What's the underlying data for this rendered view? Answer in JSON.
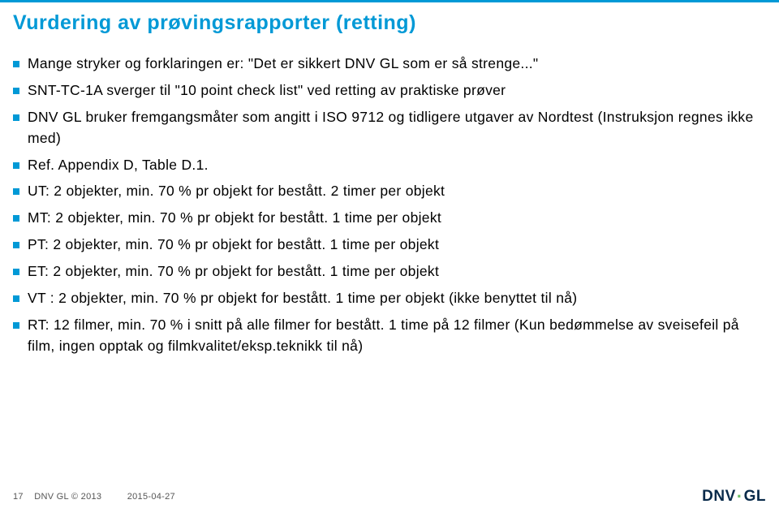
{
  "colors": {
    "accent": "#0099d6",
    "text": "#000000",
    "footer_text": "#555555",
    "logo_text": "#082a4a",
    "logo_dot": "#6fc067",
    "background": "#ffffff"
  },
  "typography": {
    "family": "Verdana, Geneva, sans-serif",
    "title_fontsize": 25,
    "body_fontsize": 17.5,
    "footer_fontsize": 11,
    "logo_fontsize": 19
  },
  "title": "Vurdering av prøvingsrapporter (retting)",
  "bullets": [
    "Mange stryker og forklaringen er: \"Det er sikkert DNV GL som er så strenge...\"",
    "SNT-TC-1A sverger til \"10 point check list\" ved retting av praktiske prøver",
    "DNV GL bruker fremgangsmåter som angitt i ISO 9712 og tidligere utgaver av Nordtest (Instruksjon regnes ikke med)",
    "Ref. Appendix D, Table D.1.",
    "UT: 2 objekter, min. 70 % pr objekt for bestått. 2 timer per objekt",
    "MT: 2 objekter, min. 70 % pr objekt for bestått. 1 time per objekt",
    "PT: 2 objekter, min. 70 % pr objekt for bestått. 1 time per objekt",
    "ET: 2 objekter, min. 70 % pr objekt for bestått. 1 time per objekt",
    "VT : 2 objekter, min. 70 % pr objekt for bestått. 1 time per objekt (ikke benyttet til nå)",
    "RT: 12 filmer, min. 70 % i snitt på alle filmer for bestått. 1 time på 12 filmer (Kun bedømmelse av sveisefeil på film, ingen opptak og filmkvalitet/eksp.teknikk til nå)"
  ],
  "footer": {
    "page": "17",
    "company": "DNV GL © 2013",
    "date": "2015-04-27"
  },
  "logo": {
    "left": "DNV",
    "right": "GL"
  }
}
